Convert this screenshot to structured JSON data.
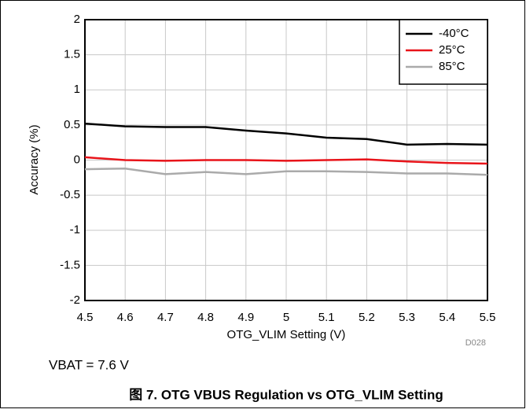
{
  "chart_data": {
    "type": "line",
    "x": [
      4.5,
      4.6,
      4.7,
      4.8,
      4.9,
      5,
      5.1,
      5.2,
      5.3,
      5.4,
      5.5
    ],
    "series": [
      {
        "name": "-40°C",
        "color": "#000000",
        "values": [
          0.52,
          0.48,
          0.47,
          0.47,
          0.42,
          0.38,
          0.32,
          0.3,
          0.22,
          0.23,
          0.22
        ]
      },
      {
        "name": "25°C",
        "color": "#e8141a",
        "values": [
          0.04,
          0.0,
          -0.01,
          0.0,
          0.0,
          -0.01,
          0.0,
          0.01,
          -0.02,
          -0.04,
          -0.05
        ]
      },
      {
        "name": "85°C",
        "color": "#aaaaaa",
        "values": [
          -0.13,
          -0.12,
          -0.2,
          -0.17,
          -0.2,
          -0.16,
          -0.16,
          -0.17,
          -0.19,
          -0.19,
          -0.21
        ]
      }
    ],
    "xlim": [
      4.5,
      5.5
    ],
    "xticks": [
      4.5,
      4.6,
      4.7,
      4.8,
      4.9,
      5,
      5.1,
      5.2,
      5.3,
      5.4,
      5.5
    ],
    "ylim": [
      -2,
      2
    ],
    "yticks": [
      -2,
      -1.5,
      -1,
      -0.5,
      0,
      0.5,
      1,
      1.5,
      2
    ],
    "xlabel": "OTG_VLIM Setting (V)",
    "ylabel": "Accuracy (%)",
    "grid": true,
    "legend": "top-right",
    "note_id": "D028",
    "annotation": "VBAT = 7.6 V",
    "caption": "图 7. OTG VBUS Regulation vs OTG_VLIM Setting"
  }
}
